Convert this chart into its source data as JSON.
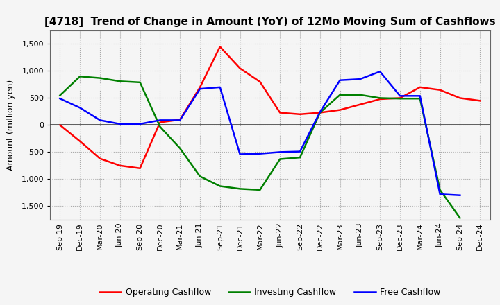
{
  "title": "[4718]  Trend of Change in Amount (YoY) of 12Mo Moving Sum of Cashflows",
  "ylabel": "Amount (million yen)",
  "labels": [
    "Sep-19",
    "Dec-19",
    "Mar-20",
    "Jun-20",
    "Sep-20",
    "Dec-20",
    "Mar-21",
    "Jun-21",
    "Sep-21",
    "Dec-21",
    "Mar-22",
    "Jun-22",
    "Sep-22",
    "Dec-22",
    "Mar-23",
    "Jun-23",
    "Sep-23",
    "Dec-23",
    "Mar-24",
    "Jun-24",
    "Sep-24",
    "Dec-24"
  ],
  "operating": [
    0,
    -300,
    -620,
    -750,
    -800,
    50,
    100,
    700,
    1450,
    1050,
    800,
    230,
    200,
    230,
    280,
    380,
    480,
    500,
    700,
    650,
    500,
    450
  ],
  "investing": [
    550,
    900,
    870,
    810,
    790,
    -30,
    -430,
    -950,
    -1130,
    -1180,
    -1200,
    -630,
    -600,
    230,
    560,
    560,
    500,
    490,
    490,
    -1200,
    -1720,
    null
  ],
  "free": [
    490,
    320,
    90,
    20,
    20,
    90,
    90,
    670,
    700,
    -540,
    -530,
    -500,
    -490,
    240,
    830,
    850,
    990,
    540,
    540,
    -1280,
    -1300,
    null
  ],
  "operating_color": "#ff0000",
  "investing_color": "#008000",
  "free_color": "#0000ff",
  "ylim": [
    -1750,
    1750
  ],
  "yticks": [
    -1500,
    -1000,
    -500,
    0,
    500,
    1000,
    1500
  ],
  "background_color": "#f5f5f5",
  "plot_background": "#f5f5f5",
  "grid_color": "#aaaaaa",
  "zero_line_color": "#444444",
  "title_fontsize": 11,
  "axis_fontsize": 8,
  "legend_fontsize": 9,
  "linewidth": 1.8
}
